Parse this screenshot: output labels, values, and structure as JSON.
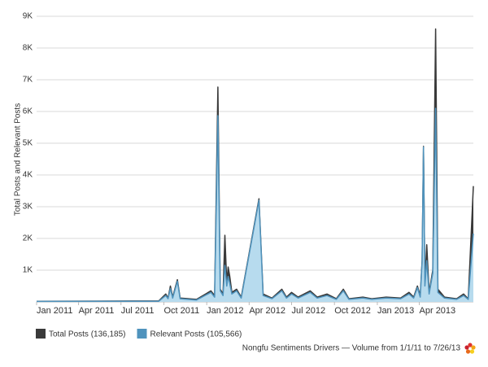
{
  "chart_data": {
    "type": "area",
    "y_axis_label": "Total Posts and Relevant Posts",
    "footer": "Nongfu Sentiments Drivers — Volume from 1/1/11 to 7/26/13",
    "x": [
      "2011-01-01",
      "2011-09-20",
      "2011-10-05",
      "2011-10-10",
      "2011-10-15",
      "2011-10-20",
      "2011-10-30",
      "2011-11-05",
      "2011-12-10",
      "2012-01-10",
      "2012-01-18",
      "2012-01-25",
      "2012-01-30",
      "2012-02-05",
      "2012-02-09",
      "2012-02-13",
      "2012-02-16",
      "2012-02-19",
      "2012-02-24",
      "2012-03-05",
      "2012-03-15",
      "2012-04-22",
      "2012-05-01",
      "2012-05-20",
      "2012-06-10",
      "2012-06-20",
      "2012-07-01",
      "2012-07-15",
      "2012-08-10",
      "2012-08-25",
      "2012-09-15",
      "2012-10-05",
      "2012-10-20",
      "2012-11-01",
      "2012-12-01",
      "2012-12-20",
      "2013-01-20",
      "2013-02-20",
      "2013-03-10",
      "2013-03-20",
      "2013-03-28",
      "2013-04-03",
      "2013-04-07",
      "2013-04-10",
      "2013-04-13",
      "2013-04-17",
      "2013-04-22",
      "2013-04-30",
      "2013-05-06",
      "2013-05-11",
      "2013-05-25",
      "2013-06-20",
      "2013-07-05",
      "2013-07-15",
      "2013-07-26"
    ],
    "series": [
      {
        "name": "Total Posts (136,185)",
        "color": "#3a3a3a",
        "fill": "#3a3a3a",
        "values": [
          20,
          30,
          250,
          120,
          500,
          150,
          700,
          120,
          80,
          350,
          200,
          6770,
          400,
          250,
          2100,
          600,
          1100,
          840,
          300,
          400,
          150,
          3250,
          250,
          120,
          400,
          150,
          300,
          150,
          350,
          150,
          250,
          100,
          400,
          100,
          150,
          100,
          150,
          120,
          300,
          150,
          500,
          200,
          1300,
          4900,
          600,
          1800,
          300,
          1000,
          8600,
          400,
          150,
          100,
          250,
          100,
          3650
        ]
      },
      {
        "name": "Relevant Posts (105,566)",
        "color": "#4f93bd",
        "fill": "#b7dbee",
        "values": [
          15,
          20,
          200,
          100,
          420,
          120,
          650,
          100,
          60,
          300,
          150,
          5870,
          350,
          200,
          1150,
          500,
          800,
          600,
          250,
          350,
          120,
          3200,
          200,
          100,
          350,
          120,
          250,
          120,
          300,
          120,
          200,
          80,
          350,
          80,
          120,
          80,
          120,
          100,
          250,
          120,
          450,
          150,
          1250,
          4880,
          500,
          1300,
          250,
          900,
          6100,
          300,
          120,
          80,
          200,
          80,
          2150
        ]
      }
    ],
    "xlim": [
      "2011-01-01",
      "2013-07-26"
    ],
    "xticks": [
      {
        "value": "2011-01-01",
        "label": "Jan 2011"
      },
      {
        "value": "2011-04-01",
        "label": "Apr 2011"
      },
      {
        "value": "2011-07-01",
        "label": "Jul 2011"
      },
      {
        "value": "2011-10-01",
        "label": "Oct 2011"
      },
      {
        "value": "2012-01-01",
        "label": "Jan 2012"
      },
      {
        "value": "2012-04-01",
        "label": "Apr 2012"
      },
      {
        "value": "2012-07-01",
        "label": "Jul 2012"
      },
      {
        "value": "2012-10-01",
        "label": "Oct 2012"
      },
      {
        "value": "2013-01-01",
        "label": "Jan 2013"
      },
      {
        "value": "2013-04-01",
        "label": "Apr 2013"
      }
    ],
    "ylim": [
      0,
      9000
    ],
    "yticks": [
      {
        "value": 1000,
        "label": "1K"
      },
      {
        "value": 2000,
        "label": "2K"
      },
      {
        "value": 3000,
        "label": "3K"
      },
      {
        "value": 4000,
        "label": "4K"
      },
      {
        "value": 5000,
        "label": "5K"
      },
      {
        "value": 6000,
        "label": "6K"
      },
      {
        "value": 7000,
        "label": "7K"
      },
      {
        "value": 8000,
        "label": "8K"
      },
      {
        "value": 9000,
        "label": "9K"
      }
    ],
    "grid": true
  }
}
